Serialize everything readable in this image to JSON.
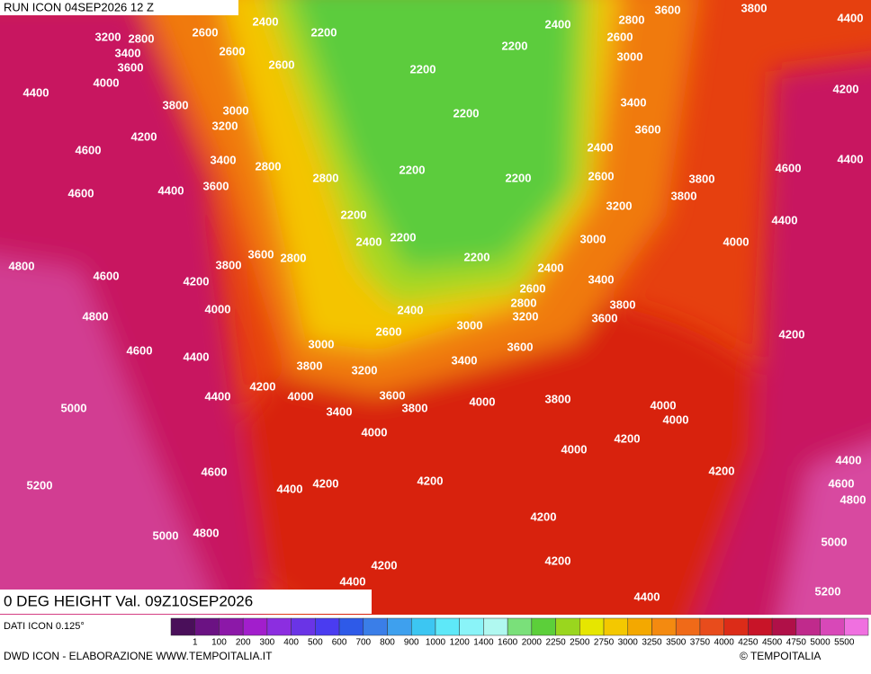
{
  "header": {
    "run": "RUN ICON 04SEP2026 12 Z"
  },
  "map": {
    "title": "0 DEG HEIGHT Val. 09Z10SEP2026",
    "contour_labels": [
      "2400",
      "2200",
      "2600",
      "3200",
      "2800",
      "3400",
      "2600",
      "3600",
      "2600",
      "2200",
      "4000",
      "4400",
      "3800",
      "3000",
      "3200",
      "4200",
      "4600",
      "3400",
      "2800",
      "4400",
      "4600",
      "3600",
      "2800",
      "2200",
      "2200",
      "2400",
      "2200",
      "3600",
      "2800",
      "3800",
      "4800",
      "4600",
      "4200",
      "4000",
      "4800",
      "3000",
      "4600",
      "4400",
      "3800",
      "3200",
      "4200",
      "4400",
      "4000",
      "3600",
      "3400",
      "3800",
      "5000",
      "4000",
      "4600",
      "5200",
      "4200",
      "4400",
      "5000",
      "4800",
      "4400",
      "4200",
      "2200",
      "2400",
      "2200",
      "2800",
      "2600",
      "3000",
      "3400",
      "3600",
      "2400",
      "2600",
      "2200",
      "3800",
      "3800",
      "3200",
      "3000",
      "2400",
      "2200",
      "2600",
      "3400",
      "2800",
      "3200",
      "3800",
      "2400",
      "3600",
      "3000",
      "2600",
      "3600",
      "3400",
      "4000",
      "3800",
      "4000",
      "4000",
      "4200",
      "4000",
      "4200",
      "4200",
      "4200",
      "4200",
      "4400",
      "3600",
      "3800",
      "4200",
      "4400",
      "4400",
      "4600",
      "4400",
      "4000",
      "4200",
      "4400",
      "4600",
      "4800",
      "5000",
      "5200"
    ]
  },
  "legend": {
    "source": "DATI ICON 0.125°",
    "colors": [
      "#4a0f5a",
      "#6b1283",
      "#8c18a8",
      "#a21ecc",
      "#8c2ee0",
      "#6a34e6",
      "#4a3cf0",
      "#2e5ae8",
      "#3a7ee8",
      "#3ea0ee",
      "#3cc6f2",
      "#5ee8f8",
      "#8af4f8",
      "#b0f8f0",
      "#7ae07a",
      "#5ccf3a",
      "#9ad61e",
      "#e6e600",
      "#f4c800",
      "#f4a800",
      "#f48a10",
      "#f06a18",
      "#e84c1c",
      "#dc2c18",
      "#c81428",
      "#b01048",
      "#c02a8c",
      "#d848b8",
      "#f070e0"
    ],
    "labels": [
      "1",
      "100",
      "200",
      "300",
      "400",
      "500",
      "600",
      "700",
      "800",
      "900",
      "1000",
      "1200",
      "1400",
      "1600",
      "2000",
      "2250",
      "2500",
      "2750",
      "3000",
      "3250",
      "3500",
      "3750",
      "4000",
      "4250",
      "4500",
      "4750",
      "5000",
      "5500"
    ]
  },
  "footer": {
    "credit": "DWD ICON - ELABORAZIONE WWW.TEMPOITALIA.IT",
    "copyright": "© TEMPOITALIA"
  }
}
